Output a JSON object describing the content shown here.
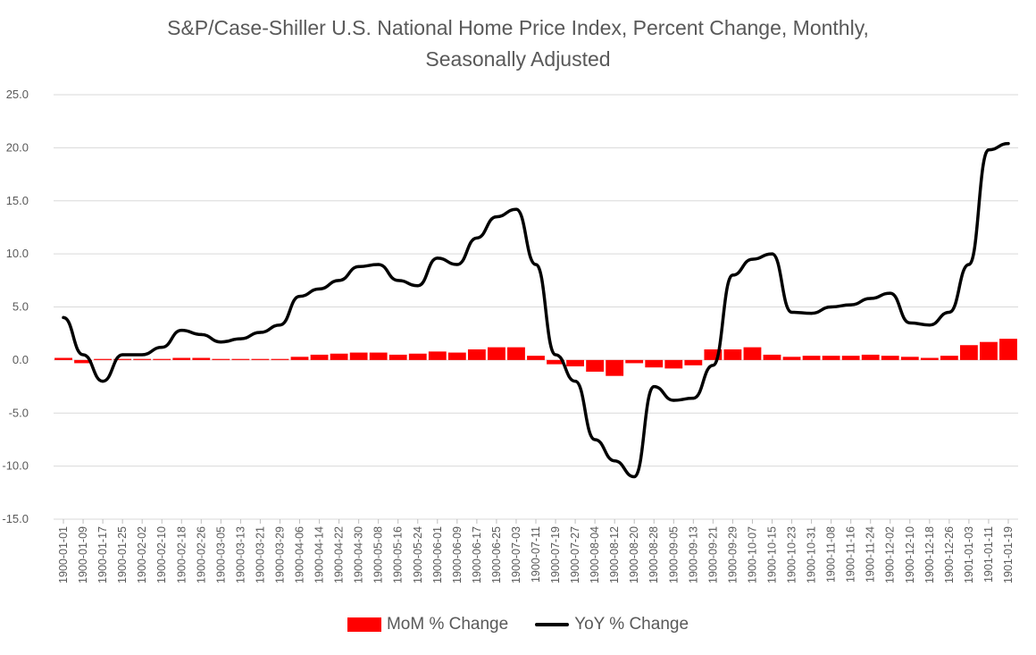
{
  "chart_data": {
    "type": "bar+line",
    "title_lines": [
      "S&P/Case-Shiller U.S. National Home Price Index, Percent Change, Monthly,",
      "Seasonally Adjusted"
    ],
    "ylim": [
      -15,
      25
    ],
    "y_ticks": [
      "25.0",
      "20.0",
      "15.0",
      "10.0",
      "5.0",
      "0.0",
      "-5.0",
      "-10.0",
      "-15.0"
    ],
    "grid": true,
    "legend_position": "bottom",
    "x_tick_labels": [
      "1900-01-01",
      "1900-01-09",
      "1900-01-17",
      "1900-01-25",
      "1900-02-02",
      "1900-02-10",
      "1900-02-18",
      "1900-02-26",
      "1900-03-05",
      "1900-03-13",
      "1900-03-21",
      "1900-03-29",
      "1900-04-06",
      "1900-04-14",
      "1900-04-22",
      "1900-04-30",
      "1900-05-08",
      "1900-05-16",
      "1900-05-24",
      "1900-06-01",
      "1900-06-09",
      "1900-06-17",
      "1900-06-25",
      "1900-07-03",
      "1900-07-11",
      "1900-07-19",
      "1900-07-27",
      "1900-08-04",
      "1900-08-12",
      "1900-08-20",
      "1900-08-28",
      "1900-09-05",
      "1900-09-13",
      "1900-09-21",
      "1900-09-29",
      "1900-10-07",
      "1900-10-15",
      "1900-10-23",
      "1900-10-31",
      "1900-11-08",
      "1900-11-16",
      "1900-11-24",
      "1900-12-02",
      "1900-12-10",
      "1900-12-18",
      "1900-12-26",
      "1901-01-03",
      "1901-01-11",
      "1901-01-19"
    ],
    "series": [
      {
        "name": "MoM % Change",
        "kind": "bar",
        "color": "#ff0000",
        "values": [
          0.2,
          -0.3,
          0.1,
          0.1,
          0.1,
          0.1,
          0.2,
          0.2,
          0.1,
          0.1,
          0.1,
          0.1,
          0.3,
          0.5,
          0.6,
          0.7,
          0.7,
          0.5,
          0.6,
          0.8,
          0.7,
          1.0,
          1.2,
          1.2,
          0.4,
          -0.4,
          -0.6,
          -1.1,
          -1.5,
          -0.3,
          -0.7,
          -0.8,
          -0.5,
          1.0,
          1.0,
          1.2,
          0.5,
          0.3,
          0.4,
          0.4,
          0.4,
          0.5,
          0.4,
          0.3,
          0.2,
          0.4,
          1.4,
          1.7,
          2.0
        ]
      },
      {
        "name": "YoY % Change",
        "kind": "line",
        "color": "#000000",
        "values": [
          4.0,
          0.5,
          -2.0,
          0.5,
          0.5,
          1.2,
          2.8,
          2.4,
          1.7,
          2.0,
          2.6,
          3.3,
          6.0,
          6.7,
          7.5,
          8.8,
          9.0,
          7.5,
          7.0,
          9.6,
          9.0,
          11.5,
          13.5,
          14.2,
          9.0,
          0.5,
          -2.0,
          -7.5,
          -9.5,
          -11.0,
          -2.5,
          -3.8,
          -3.6,
          -0.5,
          8.0,
          9.5,
          10.0,
          4.5,
          4.4,
          5.0,
          5.2,
          5.8,
          6.3,
          3.5,
          3.3,
          4.5,
          9.0,
          19.8,
          20.4
        ]
      }
    ]
  }
}
